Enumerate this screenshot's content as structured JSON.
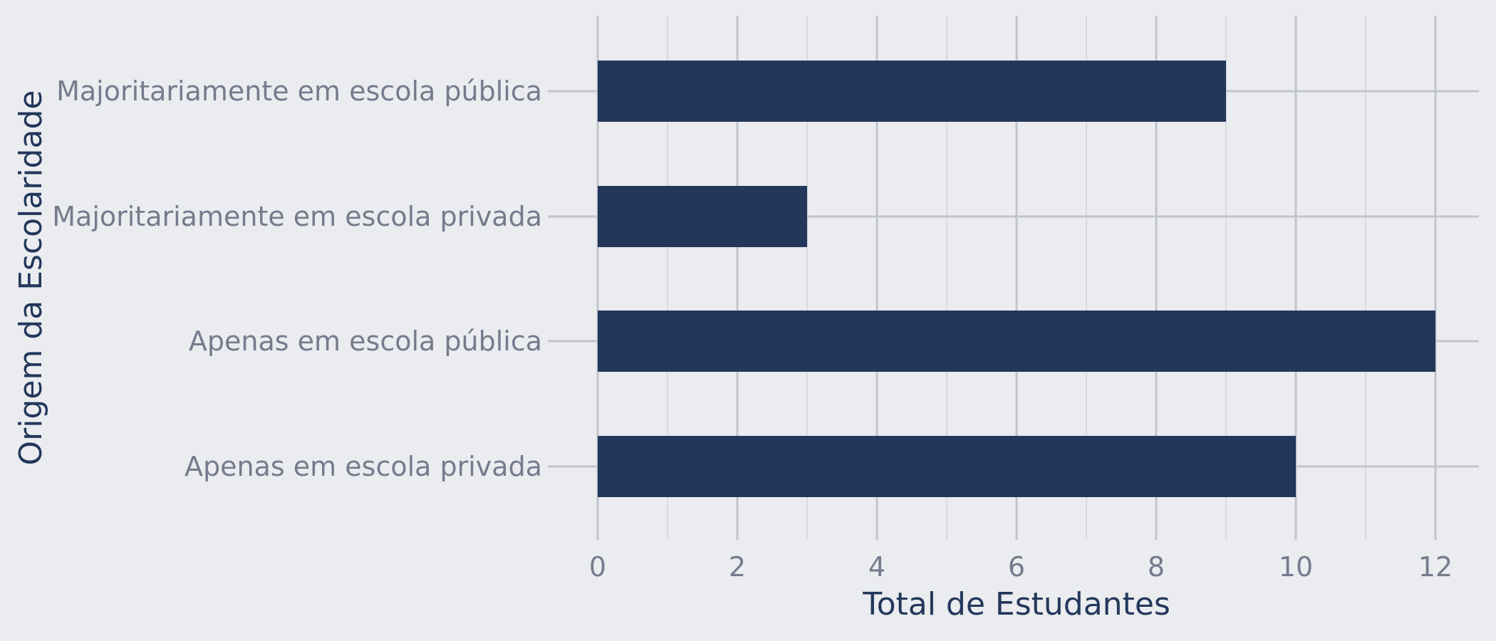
{
  "chart_data": {
    "type": "bar",
    "orientation": "horizontal",
    "categories": [
      "Majoritariamente em escola pública",
      "Majoritariamente em escola privada",
      "Apenas em escola pública",
      "Apenas em escola privada"
    ],
    "values": [
      9,
      3,
      12,
      10
    ],
    "xlabel": "Total de Estudantes",
    "ylabel": "Origem da Escolaridade",
    "xlim": [
      0,
      12
    ],
    "xticks": [
      "0",
      "2",
      "4",
      "6",
      "8",
      "10",
      "12"
    ],
    "grid": true,
    "colors": {
      "bar": "#22375a",
      "background": "#ebecf0",
      "grid_major": "#c2c5cc",
      "grid_minor": "#d8dae0",
      "tick_label": "#757b8c",
      "axis_title": "#22375a"
    }
  }
}
